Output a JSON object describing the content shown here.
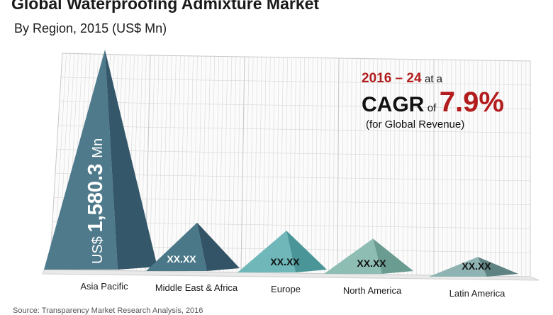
{
  "colors": {
    "pyramid_light": "#5d8fa3",
    "pyramid_dark": "#3e6477",
    "accent_red": "#b31c1c",
    "grid": "#d7d7d7"
  },
  "chart_data": {
    "type": "bar",
    "title": "Global Waterproofing Admixture Market",
    "subtitle": "By Region, 2015 (US$ Mn)",
    "categories": [
      "Asia Pacific",
      "Middle East & Africa",
      "Europe",
      "North America",
      "Latin America"
    ],
    "value_labels": [
      "US$ 1,580.3 Mn",
      "XX.XX",
      "XX.XX",
      "XX.XX",
      "XX.XX"
    ],
    "values": [
      1580.3,
      null,
      null,
      null,
      null
    ],
    "relative_heights": [
      1.0,
      0.22,
      0.19,
      0.16,
      0.09
    ],
    "series_colors": [
      [
        "#4e7a8c",
        "#34576a"
      ],
      [
        "#4a7889",
        "#325466"
      ],
      [
        "#6fb7b9",
        "#4a9597"
      ],
      [
        "#8ebdb3",
        "#6a9c92"
      ],
      [
        "#8fb3b2",
        "#5e8382"
      ]
    ],
    "grid": true,
    "annotation": {
      "period": "2016 – 24",
      "at_a": "at a",
      "cagr_label": "CAGR",
      "of": "of",
      "cagr_value": "7.9%",
      "note": "(for Global Revenue)"
    }
  },
  "source_text": "Source: Transparency Market Research Analysis, 2016"
}
